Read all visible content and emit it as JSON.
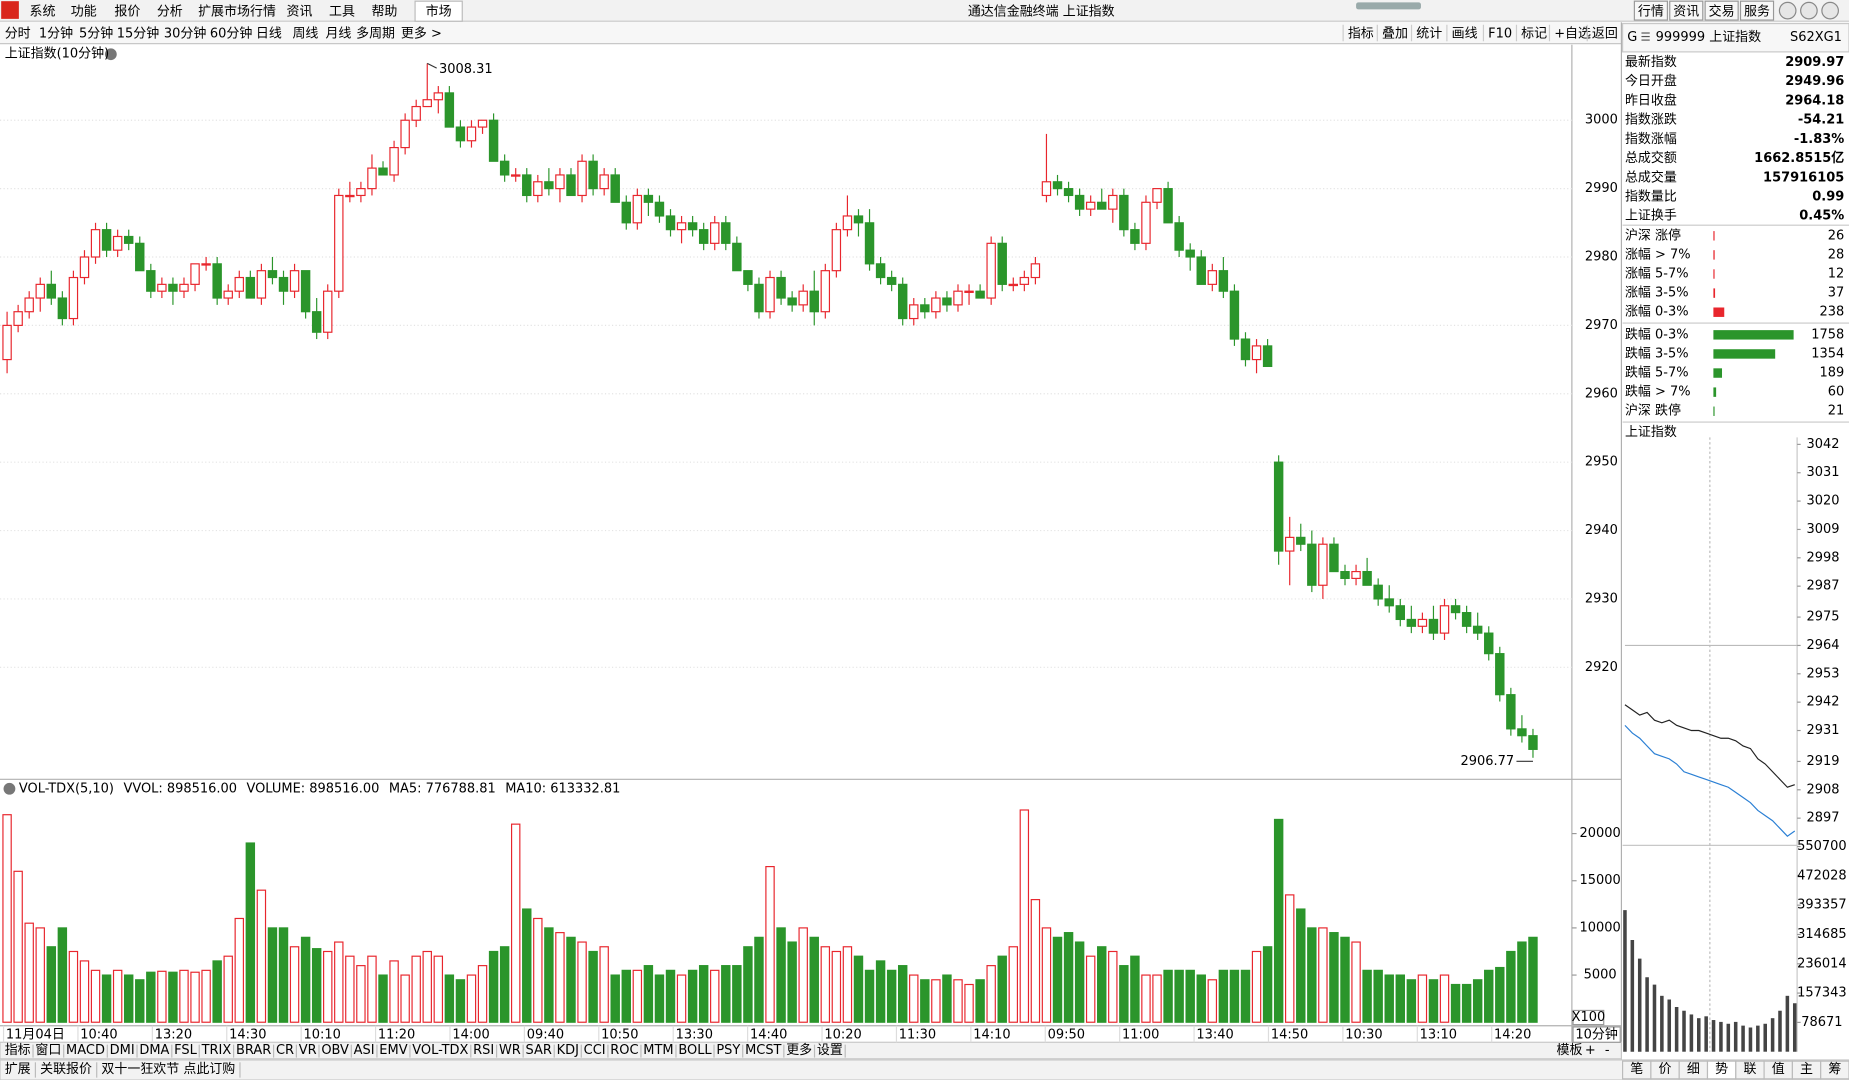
{
  "title_bar": {
    "menus": [
      "系统",
      "功能",
      "报价",
      "分析",
      "扩展市场行情",
      "资讯",
      "工具",
      "帮助"
    ],
    "active_tab": "市场",
    "app_title": "通达信金融终端 上证指数",
    "right_buttons": [
      "行情",
      "资讯",
      "交易",
      "服务"
    ]
  },
  "period_bar": {
    "periods": [
      "分时",
      "1分钟",
      "5分钟",
      "15分钟",
      "30分钟",
      "60分钟",
      "日线",
      "周线",
      "月线",
      "多周期"
    ],
    "more": "更多 >",
    "tools": [
      "指标",
      "叠加",
      "统计",
      "画线",
      "F10",
      "标记",
      "+自选",
      "返回"
    ]
  },
  "main_chart": {
    "type": "candlestick",
    "title": "上证指数(10分钟)",
    "up_color": "#e8262d",
    "down_color": "#2b952b",
    "ylim": [
      2903.79,
      3011.03
    ],
    "yticks": [
      2920,
      2930,
      2940,
      2950,
      2960,
      2970,
      2980,
      2990,
      3000
    ],
    "high_label": 3008.31,
    "low_label": 2906.77,
    "candles": [
      [
        2965,
        2972,
        2963,
        2970
      ],
      [
        2970,
        2973,
        2969,
        2972
      ],
      [
        2972,
        2975,
        2971,
        2974
      ],
      [
        2974,
        2977,
        2972,
        2976
      ],
      [
        2976,
        2978,
        2973,
        2974
      ],
      [
        2974,
        2975,
        2970,
        2971
      ],
      [
        2971,
        2978,
        2970,
        2977
      ],
      [
        2977,
        2981,
        2976,
        2980
      ],
      [
        2980,
        2985,
        2979,
        2984
      ],
      [
        2984,
        2985,
        2980,
        2981
      ],
      [
        2981,
        2984,
        2980,
        2983
      ],
      [
        2983,
        2984,
        2981,
        2982
      ],
      [
        2982,
        2983,
        2978,
        2978
      ],
      [
        2978,
        2979,
        2974,
        2975
      ],
      [
        2975,
        2977,
        2974,
        2976
      ],
      [
        2976,
        2977,
        2973,
        2975
      ],
      [
        2975,
        2977,
        2974,
        2976
      ],
      [
        2976,
        2979,
        2975,
        2979
      ],
      [
        2979,
        2980,
        2978,
        2979
      ],
      [
        2979,
        2980,
        2973,
        2974
      ],
      [
        2974,
        2976,
        2973,
        2975
      ],
      [
        2975,
        2978,
        2974,
        2977
      ],
      [
        2977,
        2978,
        2974,
        2974
      ],
      [
        2974,
        2979,
        2973,
        2978
      ],
      [
        2978,
        2980,
        2976,
        2977
      ],
      [
        2977,
        2978,
        2973,
        2975
      ],
      [
        2975,
        2979,
        2974,
        2978
      ],
      [
        2978,
        2978,
        2971,
        2972
      ],
      [
        2972,
        2974,
        2968,
        2969
      ],
      [
        2969,
        2976,
        2968,
        2975
      ],
      [
        2975,
        2990,
        2974,
        2989
      ],
      [
        2989,
        2991,
        2988,
        2989
      ],
      [
        2989,
        2991,
        2988,
        2990
      ],
      [
        2990,
        2995,
        2989,
        2993
      ],
      [
        2993,
        2994,
        2992,
        2992
      ],
      [
        2992,
        2997,
        2991,
        2996
      ],
      [
        2996,
        3001,
        2995,
        3000
      ],
      [
        3000,
        3003,
        2999,
        3002
      ],
      [
        3002,
        3008.31,
        3002,
        3003
      ],
      [
        3003,
        3005,
        3001,
        3004
      ],
      [
        3004,
        3005,
        2999,
        2999
      ],
      [
        2999,
        3000,
        2996,
        2997
      ],
      [
        2997,
        3000,
        2996,
        2999
      ],
      [
        2999,
        3000,
        2998,
        3000
      ],
      [
        3000,
        3001,
        2994,
        2994
      ],
      [
        2994,
        2995,
        2991,
        2992
      ],
      [
        2992,
        2993,
        2991,
        2992
      ],
      [
        2992,
        2993,
        2988,
        2989
      ],
      [
        2989,
        2992,
        2988,
        2991
      ],
      [
        2991,
        2993,
        2989,
        2990
      ],
      [
        2990,
        2993,
        2988,
        2992
      ],
      [
        2992,
        2993,
        2989,
        2989
      ],
      [
        2989,
        2995,
        2988,
        2994
      ],
      [
        2994,
        2995,
        2989,
        2990
      ],
      [
        2990,
        2993,
        2989,
        2992
      ],
      [
        2992,
        2993,
        2988,
        2988
      ],
      [
        2988,
        2989,
        2984,
        2985
      ],
      [
        2985,
        2990,
        2984,
        2989
      ],
      [
        2989,
        2990,
        2986,
        2988
      ],
      [
        2988,
        2989,
        2985,
        2986
      ],
      [
        2986,
        2987,
        2983,
        2984
      ],
      [
        2984,
        2986,
        2982,
        2985
      ],
      [
        2985,
        2986,
        2983,
        2984
      ],
      [
        2984,
        2985,
        2981,
        2982
      ],
      [
        2982,
        2986,
        2981,
        2985
      ],
      [
        2985,
        2986,
        2981,
        2982
      ],
      [
        2982,
        2983,
        2978,
        2978
      ],
      [
        2978,
        2978,
        2975,
        2976
      ],
      [
        2976,
        2977,
        2971,
        2972
      ],
      [
        2972,
        2978,
        2971,
        2977
      ],
      [
        2977,
        2978,
        2973,
        2974
      ],
      [
        2974,
        2975,
        2972,
        2973
      ],
      [
        2973,
        2976,
        2972,
        2975
      ],
      [
        2975,
        2978,
        2970,
        2972
      ],
      [
        2972,
        2979,
        2971,
        2978
      ],
      [
        2978,
        2985,
        2977,
        2984
      ],
      [
        2984,
        2989,
        2983,
        2986
      ],
      [
        2986,
        2987,
        2983,
        2985
      ],
      [
        2985,
        2987,
        2978,
        2979
      ],
      [
        2979,
        2980,
        2976,
        2977
      ],
      [
        2977,
        2978,
        2975,
        2976
      ],
      [
        2976,
        2977,
        2970,
        2971
      ],
      [
        2971,
        2974,
        2970,
        2973
      ],
      [
        2973,
        2974,
        2971,
        2972
      ],
      [
        2972,
        2975,
        2971,
        2974
      ],
      [
        2974,
        2975,
        2972,
        2973
      ],
      [
        2973,
        2976,
        2972,
        2975
      ],
      [
        2975,
        2976,
        2973,
        2975
      ],
      [
        2975,
        2976,
        2974,
        2974
      ],
      [
        2974,
        2983,
        2973,
        2982
      ],
      [
        2982,
        2983,
        2975,
        2976
      ],
      [
        2976,
        2977,
        2975,
        2976
      ],
      [
        2976,
        2978,
        2975,
        2977
      ],
      [
        2977,
        2980,
        2976,
        2979
      ],
      [
        2989,
        2998,
        2988,
        2991
      ],
      [
        2991,
        2992,
        2989,
        2990
      ],
      [
        2990,
        2991,
        2988,
        2989
      ],
      [
        2989,
        2990,
        2986,
        2987
      ],
      [
        2987,
        2989,
        2986,
        2988
      ],
      [
        2988,
        2990,
        2987,
        2987
      ],
      [
        2987,
        2990,
        2985,
        2989
      ],
      [
        2989,
        2990,
        2983,
        2984
      ],
      [
        2984,
        2985,
        2981,
        2982
      ],
      [
        2982,
        2989,
        2981,
        2988
      ],
      [
        2988,
        2990,
        2987,
        2990
      ],
      [
        2990,
        2991,
        2985,
        2985
      ],
      [
        2985,
        2986,
        2980,
        2981
      ],
      [
        2981,
        2982,
        2978,
        2980
      ],
      [
        2980,
        2981,
        2976,
        2976
      ],
      [
        2976,
        2979,
        2975,
        2978
      ],
      [
        2978,
        2980,
        2974,
        2975
      ],
      [
        2975,
        2976,
        2967,
        2968
      ],
      [
        2968,
        2969,
        2964,
        2965
      ],
      [
        2965,
        2968,
        2963,
        2967
      ],
      [
        2967,
        2968,
        2964,
        2964
      ],
      [
        2950,
        2951,
        2935,
        2937
      ],
      [
        2937,
        2942,
        2932,
        2939
      ],
      [
        2939,
        2941,
        2937,
        2938
      ],
      [
        2938,
        2940,
        2931,
        2932
      ],
      [
        2932,
        2939,
        2930,
        2938
      ],
      [
        2938,
        2939,
        2934,
        2934
      ],
      [
        2934,
        2935,
        2932,
        2933
      ],
      [
        2933,
        2935,
        2932,
        2934
      ],
      [
        2934,
        2936,
        2932,
        2932
      ],
      [
        2932,
        2933,
        2929,
        2930
      ],
      [
        2930,
        2932,
        2928,
        2929
      ],
      [
        2929,
        2930,
        2926,
        2927
      ],
      [
        2927,
        2929,
        2925,
        2926
      ],
      [
        2926,
        2928,
        2925,
        2927
      ],
      [
        2927,
        2929,
        2924,
        2925
      ],
      [
        2925,
        2930,
        2924,
        2929
      ],
      [
        2929,
        2930,
        2927,
        2928
      ],
      [
        2928,
        2929,
        2925,
        2926
      ],
      [
        2926,
        2928,
        2924,
        2925
      ],
      [
        2925,
        2926,
        2921,
        2922
      ],
      [
        2922,
        2923,
        2915,
        2916
      ],
      [
        2916,
        2917,
        2910,
        2911
      ],
      [
        2911,
        2913,
        2909,
        2910
      ],
      [
        2910,
        2911,
        2906.77,
        2908
      ]
    ],
    "x_labels": [
      "11月04日",
      "10:40",
      "13:20",
      "14:30",
      "10:10",
      "11:20",
      "14:00",
      "09:40",
      "10:50",
      "13:30",
      "14:40",
      "10:20",
      "11:30",
      "14:10",
      "09:50",
      "11:00",
      "13:40",
      "14:50",
      "10:30",
      "13:10",
      "14:20"
    ],
    "period_label": "10分钟"
  },
  "volume_chart": {
    "type": "bar",
    "legend": [
      {
        "text": "VOL-TDX(5,10)",
        "color": "#000000"
      },
      {
        "text": "VVOL: 898516.00",
        "color": "#000000"
      },
      {
        "text": "VOLUME: 898516.00",
        "color": "#1a73c9"
      },
      {
        "text": "MA5: 776788.81",
        "color": "#1a73c9"
      },
      {
        "text": "MA10: 613332.81",
        "color": "#8a1a8a"
      }
    ],
    "unit_label": "X100",
    "ylim": [
      0,
      23875
    ],
    "yticks": [
      5000,
      10000,
      15000,
      20000
    ],
    "values": [
      22000,
      16000,
      10500,
      10000,
      8000,
      10000,
      7500,
      6500,
      5500,
      5000,
      5500,
      5000,
      4500,
      5300,
      5400,
      5300,
      5500,
      5300,
      5500,
      6500,
      7000,
      11000,
      19000,
      14000,
      10000,
      10000,
      8000,
      9000,
      7800,
      7500,
      8500,
      7000,
      6000,
      7000,
      5000,
      6500,
      5000,
      7000,
      7500,
      7000,
      5000,
      4500,
      5000,
      6000,
      7500,
      8000,
      21000,
      12000,
      11000,
      10000,
      9500,
      9000,
      8500,
      7500,
      8000,
      5000,
      5500,
      5500,
      6000,
      5000,
      5500,
      5000,
      5500,
      6000,
      5500,
      6000,
      6000,
      8000,
      9000,
      16500,
      10000,
      8500,
      10000,
      9000,
      8000,
      7500,
      8000,
      7000,
      5500,
      6500,
      5500,
      6000,
      5000,
      4500,
      4500,
      5000,
      4500,
      4000,
      4500,
      6000,
      7000,
      8000,
      22500,
      13000,
      10000,
      9000,
      9500,
      8500,
      7000,
      8000,
      7500,
      6000,
      7000,
      5000,
      5000,
      5500,
      5500,
      5500,
      5000,
      4500,
      5500,
      5500,
      5500,
      7500,
      8000,
      21500,
      13500,
      12000,
      10000,
      10000,
      9500,
      9000,
      8500,
      5500,
      5500,
      5000,
      5000,
      4500,
      5000,
      4500,
      5000,
      4000,
      4000,
      4500,
      5500,
      5800,
      7500,
      8500,
      9000
    ]
  },
  "indicator_tabs": {
    "tabs": [
      "指标",
      "窗口",
      "MACD",
      "DMI",
      "DMA",
      "FSL",
      "TRIX",
      "BRAR",
      "CR",
      "VR",
      "OBV",
      "ASI",
      "EMV",
      "VOL-TDX",
      "RSI",
      "WR",
      "SAR",
      "KDJ",
      "CCI",
      "ROC",
      "MTM",
      "BOLL",
      "PSY",
      "MCST",
      "更多",
      "设置"
    ],
    "active_index": 13,
    "right": [
      "模板",
      "+",
      "-"
    ]
  },
  "status_bar": {
    "items": [
      "扩展",
      "关联报价",
      "双十一狂欢节 点此订购"
    ],
    "right_tabs": [
      "笔",
      "价",
      "细",
      "势",
      "联",
      "值",
      "主",
      "筹"
    ],
    "active_right": 3
  },
  "quote_panel": {
    "badge": "G",
    "title": "999999 上证指数",
    "code": "S62XG1",
    "stats": [
      {
        "label": "最新指数",
        "value": "2909.97",
        "color": "#1f8f1f"
      },
      {
        "label": "今日开盘",
        "value": "2949.96",
        "color": "#1f8f1f"
      },
      {
        "label": "昨日收盘",
        "value": "2964.18",
        "color": "#000000"
      },
      {
        "label": "指数涨跌",
        "value": "-54.21",
        "color": "#1f8f1f"
      },
      {
        "label": "指数涨幅",
        "value": "-1.83%",
        "color": "#1f8f1f"
      },
      {
        "label": "总成交额",
        "value": "1662.8515亿",
        "color": "#000000"
      },
      {
        "label": "总成交量",
        "value": "157916105",
        "color": "#000000"
      },
      {
        "label": "指数量比",
        "value": "0.99",
        "color": "#000000"
      },
      {
        "label": "上证换手",
        "value": "0.45%",
        "color": "#000000"
      }
    ],
    "breadth": [
      {
        "label": "沪深 涨停",
        "count": 26,
        "color": "#e8262d"
      },
      {
        "label": "涨幅 > 7%",
        "count": 28,
        "color": "#e8262d"
      },
      {
        "label": "涨幅 5-7%",
        "count": 12,
        "color": "#e8262d"
      },
      {
        "label": "涨幅 3-5%",
        "count": 37,
        "color": "#e8262d"
      },
      {
        "label": "涨幅 0-3%",
        "count": 238,
        "color": "#e8262d"
      },
      {
        "label": "跌幅 0-3%",
        "count": 1758,
        "color": "#2b952b"
      },
      {
        "label": "跌幅 3-5%",
        "count": 1354,
        "color": "#2b952b"
      },
      {
        "label": "跌幅 5-7%",
        "count": 189,
        "color": "#2b952b"
      },
      {
        "label": "跌幅 > 7%",
        "count": 60,
        "color": "#2b952b"
      },
      {
        "label": "沪深 跌停",
        "count": 21,
        "color": "#2b952b"
      }
    ]
  },
  "mini_chart": {
    "type": "line",
    "title": "上证指数",
    "ylim": [
      2886.9,
      3044.7
    ],
    "yticks": [
      3042,
      3031,
      3020,
      3009,
      2998,
      2987,
      2975,
      2964,
      2953,
      2942,
      2931,
      2919,
      2908,
      2897
    ],
    "series": [
      {
        "color": "#222222",
        "values": [
          2941,
          2939,
          2937,
          2938,
          2935,
          2934,
          2935,
          2933,
          2932,
          2931,
          2931,
          2930,
          2929,
          2928,
          2928,
          2927,
          2925,
          2924,
          2920,
          2918,
          2915,
          2912,
          2909,
          2910
        ]
      },
      {
        "color": "#2a7fd4",
        "values": [
          2933,
          2930,
          2928,
          2925,
          2922,
          2921,
          2920,
          2918,
          2915,
          2914,
          2913,
          2912,
          2911,
          2910,
          2909,
          2907,
          2905,
          2903,
          2900,
          2898,
          2896,
          2893,
          2890,
          2892
        ]
      }
    ],
    "volume_ylim": [
      0,
      550700
    ],
    "volume_yticks": [
      550700,
      472028,
      393357,
      314685,
      236014,
      157343,
      78671
    ],
    "volume": [
      380000,
      300000,
      250000,
      200000,
      180000,
      150000,
      140000,
      120000,
      110000,
      100000,
      90000,
      95000,
      85000,
      80000,
      75000,
      80000,
      70000,
      65000,
      70000,
      75000,
      90000,
      110000,
      150000,
      130000
    ]
  }
}
